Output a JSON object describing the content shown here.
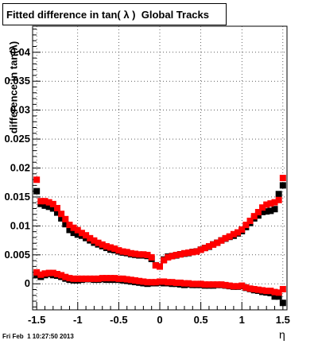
{
  "chart_data": {
    "type": "scatter",
    "title": "Fitted difference in tan( λ )  Global Tracks",
    "xlabel": "η",
    "ylabel": "difference in tan(λ)",
    "xlim": [
      -1.55,
      1.55
    ],
    "ylim": [
      -0.0045,
      0.0445
    ],
    "grid": true,
    "x_ticks": [
      -1.5,
      -1,
      -0.5,
      0,
      0.5,
      1,
      1.5
    ],
    "x_tick_labels": [
      "-1.5",
      "-1",
      "-0.5",
      "0",
      "0.5",
      "1",
      "1.5"
    ],
    "y_ticks": [
      0,
      0.005,
      0.01,
      0.015,
      0.02,
      0.025,
      0.03,
      0.035,
      0.04
    ],
    "y_tick_labels": [
      "0",
      "0.005",
      "0.01",
      "0.015",
      "0.02",
      "0.025",
      "0.03",
      "0.035",
      "0.04"
    ],
    "x": [
      -1.5,
      -1.45,
      -1.4,
      -1.35,
      -1.3,
      -1.25,
      -1.2,
      -1.15,
      -1.1,
      -1.05,
      -1.0,
      -0.95,
      -0.9,
      -0.85,
      -0.8,
      -0.75,
      -0.7,
      -0.65,
      -0.6,
      -0.55,
      -0.5,
      -0.45,
      -0.4,
      -0.35,
      -0.3,
      -0.25,
      -0.2,
      -0.15,
      -0.1,
      -0.05,
      0.0,
      0.05,
      0.1,
      0.15,
      0.2,
      0.25,
      0.3,
      0.35,
      0.4,
      0.45,
      0.5,
      0.55,
      0.6,
      0.65,
      0.7,
      0.75,
      0.8,
      0.85,
      0.9,
      0.95,
      1.0,
      1.05,
      1.1,
      1.15,
      1.2,
      1.25,
      1.3,
      1.35,
      1.4,
      1.45,
      1.5
    ],
    "series": [
      {
        "color": "#000000",
        "values": [
          0.016,
          0.0138,
          0.0135,
          0.0133,
          0.013,
          0.0123,
          0.0113,
          0.0103,
          0.0093,
          0.0088,
          0.0085,
          0.0083,
          0.0079,
          0.0075,
          0.0071,
          0.0068,
          0.0065,
          0.0062,
          0.0059,
          0.0058,
          0.0056,
          0.0054,
          0.0053,
          0.0051,
          0.005,
          0.0049,
          0.0049,
          0.0048,
          0.0043,
          0.0032,
          0.003,
          0.0042,
          0.0047,
          0.0048,
          0.0049,
          0.0051,
          0.0052,
          0.0053,
          0.0055,
          0.0056,
          0.0059,
          0.0062,
          0.0064,
          0.0068,
          0.0071,
          0.0075,
          0.0078,
          0.0081,
          0.0083,
          0.0087,
          0.0091,
          0.0098,
          0.0105,
          0.0113,
          0.0118,
          0.0124,
          0.0125,
          0.0126,
          0.0129,
          0.0155,
          0.017
        ]
      },
      {
        "color": "#000000",
        "values": [
          0.0015,
          0.0012,
          0.0015,
          0.0017,
          0.0015,
          0.0014,
          0.0012,
          0.0009,
          0.0007,
          0.0006,
          0.0006,
          0.0007,
          0.0008,
          0.0008,
          0.0007,
          0.0007,
          0.0008,
          0.0007,
          0.0007,
          0.0007,
          0.0007,
          0.0006,
          0.0005,
          0.0004,
          0.0003,
          0.0002,
          0.0001,
          0.0,
          0.0001,
          0.0001,
          0.0002,
          0.0001,
          0.0001,
          0.0,
          0.0,
          -0.0001,
          -0.0002,
          -0.0001,
          -0.0002,
          -0.0002,
          -0.0002,
          -0.0003,
          -0.0003,
          -0.0003,
          -0.0002,
          -0.0002,
          -0.0003,
          -0.0004,
          -0.0005,
          -0.0005,
          -0.0004,
          -0.0007,
          -0.0009,
          -0.0011,
          -0.0012,
          -0.0014,
          -0.0015,
          -0.0016,
          -0.0022,
          -0.0022,
          -0.0033
        ]
      },
      {
        "color": "#ff0000",
        "values": [
          0.0177,
          0.014,
          0.014,
          0.0138,
          0.0135,
          0.0128,
          0.0118,
          0.0109,
          0.0099,
          0.0094,
          0.009,
          0.0085,
          0.0081,
          0.0076,
          0.0072,
          0.0068,
          0.0065,
          0.0062,
          0.006,
          0.0058,
          0.0055,
          0.0053,
          0.0052,
          0.005,
          0.0049,
          0.0048,
          0.0048,
          0.0047,
          0.0043,
          0.0029,
          0.0027,
          0.0038,
          0.0043,
          0.0045,
          0.0047,
          0.0048,
          0.005,
          0.0051,
          0.0052,
          0.0053,
          0.0056,
          0.0059,
          0.0062,
          0.0065,
          0.0068,
          0.0072,
          0.0076,
          0.0079,
          0.0083,
          0.0086,
          0.0091,
          0.0099,
          0.0106,
          0.0114,
          0.0121,
          0.0129,
          0.0134,
          0.0136,
          0.0138,
          0.0142,
          0.018
        ]
      },
      {
        "color": "#ff0000",
        "values": [
          0.0017,
          0.0013,
          0.0015,
          0.0016,
          0.0016,
          0.0014,
          0.0012,
          0.0009,
          0.0007,
          0.0006,
          0.0006,
          0.0006,
          0.0006,
          0.0006,
          0.0006,
          0.0006,
          0.0007,
          0.0007,
          0.0007,
          0.0007,
          0.0006,
          0.0006,
          0.0005,
          0.0004,
          0.0003,
          0.0002,
          0.0001,
          0.0,
          0.0,
          0.0,
          0.0001,
          0.0001,
          0.0,
          0.0,
          -0.0001,
          -0.0001,
          -0.0002,
          -0.0002,
          -0.0003,
          -0.0003,
          -0.0003,
          -0.0004,
          -0.0004,
          -0.0004,
          -0.0004,
          -0.0004,
          -0.0005,
          -0.0006,
          -0.0007,
          -0.0007,
          -0.0006,
          -0.0009,
          -0.0011,
          -0.0012,
          -0.0013,
          -0.0014,
          -0.0015,
          -0.0015,
          -0.0017,
          -0.0018,
          -0.0012
        ]
      }
    ]
  },
  "timestamp": "Fri Feb  1 10:27:50 2013"
}
